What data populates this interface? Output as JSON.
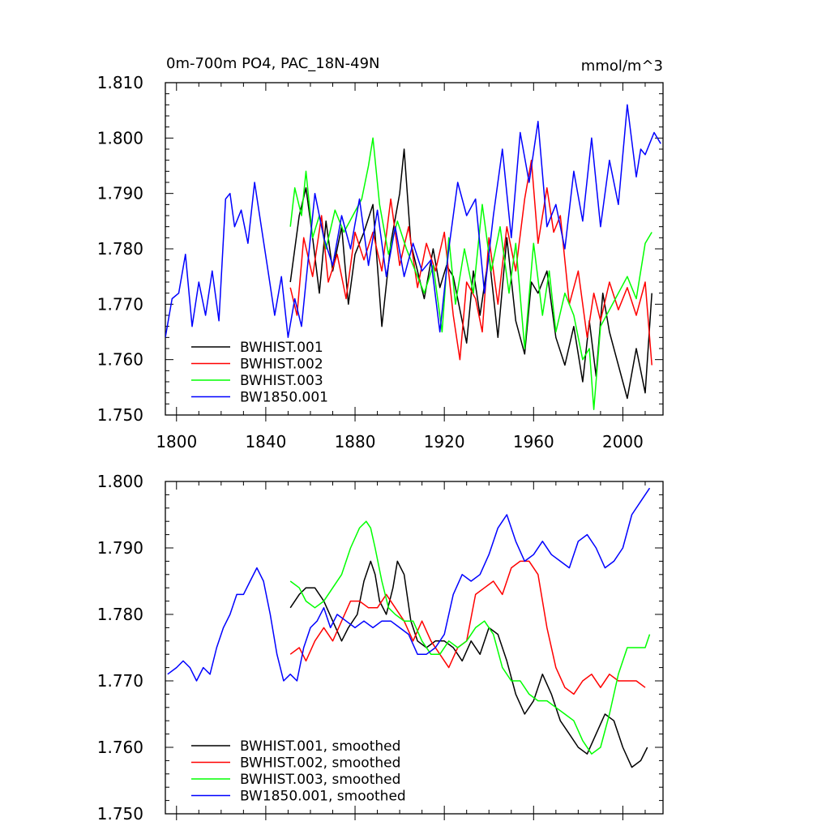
{
  "chart_data": [
    {
      "type": "line",
      "title_left": "0m-700m PO4, PAC_18N-49N",
      "title_right": "mmol/m^3",
      "xlim": [
        1795,
        2018
      ],
      "ylim": [
        1.75,
        1.81
      ],
      "x_ticks": [
        1800,
        1840,
        1880,
        1920,
        1960,
        2000
      ],
      "y_ticks": [
        1.75,
        1.76,
        1.77,
        1.78,
        1.79,
        1.8,
        1.81
      ],
      "y_tick_labels": [
        "1.750",
        "1.760",
        "1.770",
        "1.780",
        "1.790",
        "1.800",
        "1.810"
      ],
      "legend_position": "bottom-left",
      "series": [
        {
          "name": "BWHIST.001",
          "color": "#000000",
          "x": [
            1851,
            1855,
            1858,
            1861,
            1864,
            1867,
            1870,
            1874,
            1877,
            1880,
            1884,
            1888,
            1892,
            1896,
            1900,
            1902,
            1905,
            1908,
            1911,
            1915,
            1918,
            1921,
            1924,
            1927,
            1930,
            1933,
            1936,
            1940,
            1944,
            1948,
            1952,
            1956,
            1959,
            1962,
            1966,
            1970,
            1974,
            1978,
            1982,
            1985,
            1988,
            1991,
            1994,
            1998,
            2002,
            2006,
            2010,
            2013
          ],
          "values": [
            1.774,
            1.786,
            1.791,
            1.782,
            1.772,
            1.785,
            1.776,
            1.784,
            1.77,
            1.779,
            1.783,
            1.788,
            1.766,
            1.781,
            1.79,
            1.798,
            1.781,
            1.776,
            1.771,
            1.78,
            1.773,
            1.777,
            1.775,
            1.769,
            1.763,
            1.776,
            1.768,
            1.779,
            1.764,
            1.782,
            1.767,
            1.761,
            1.774,
            1.772,
            1.776,
            1.764,
            1.759,
            1.766,
            1.756,
            1.767,
            1.757,
            1.772,
            1.765,
            1.759,
            1.753,
            1.762,
            1.754,
            1.772
          ]
        },
        {
          "name": "BWHIST.002",
          "color": "#ff0000",
          "x": [
            1851,
            1854,
            1857,
            1861,
            1865,
            1868,
            1872,
            1876,
            1880,
            1884,
            1888,
            1892,
            1896,
            1900,
            1904,
            1908,
            1912,
            1916,
            1920,
            1924,
            1927,
            1930,
            1934,
            1937,
            1940,
            1944,
            1948,
            1952,
            1956,
            1959,
            1962,
            1966,
            1969,
            1972,
            1976,
            1980,
            1984,
            1987,
            1990,
            1994,
            1998,
            2002,
            2006,
            2010,
            2013
          ],
          "values": [
            1.773,
            1.768,
            1.782,
            1.775,
            1.786,
            1.774,
            1.779,
            1.771,
            1.783,
            1.778,
            1.783,
            1.776,
            1.789,
            1.777,
            1.784,
            1.773,
            1.781,
            1.776,
            1.783,
            1.768,
            1.76,
            1.774,
            1.771,
            1.765,
            1.782,
            1.77,
            1.784,
            1.776,
            1.789,
            1.796,
            1.781,
            1.791,
            1.783,
            1.786,
            1.77,
            1.776,
            1.764,
            1.772,
            1.767,
            1.774,
            1.769,
            1.773,
            1.768,
            1.774,
            1.759
          ]
        },
        {
          "name": "BWHIST.003",
          "color": "#00ff00",
          "x": [
            1851,
            1853,
            1856,
            1858,
            1861,
            1864,
            1867,
            1871,
            1875,
            1879,
            1883,
            1886,
            1888,
            1891,
            1895,
            1899,
            1903,
            1907,
            1911,
            1915,
            1919,
            1922,
            1925,
            1929,
            1933,
            1937,
            1941,
            1945,
            1949,
            1952,
            1956,
            1960,
            1964,
            1967,
            1970,
            1974,
            1978,
            1982,
            1985,
            1987,
            1990,
            1994,
            1998,
            2002,
            2006,
            2010,
            2013
          ],
          "values": [
            1.784,
            1.791,
            1.786,
            1.794,
            1.782,
            1.786,
            1.78,
            1.787,
            1.783,
            1.786,
            1.789,
            1.795,
            1.8,
            1.788,
            1.779,
            1.785,
            1.78,
            1.776,
            1.772,
            1.777,
            1.765,
            1.782,
            1.77,
            1.78,
            1.772,
            1.788,
            1.776,
            1.784,
            1.772,
            1.781,
            1.762,
            1.781,
            1.768,
            1.776,
            1.765,
            1.772,
            1.768,
            1.76,
            1.762,
            1.751,
            1.766,
            1.769,
            1.772,
            1.775,
            1.771,
            1.781,
            1.783
          ]
        },
        {
          "name": "BW1850.001",
          "color": "#0000ff",
          "x": [
            1795,
            1798,
            1801,
            1804,
            1807,
            1810,
            1813,
            1816,
            1819,
            1822,
            1824,
            1826,
            1829,
            1832,
            1835,
            1838,
            1841,
            1844,
            1847,
            1850,
            1853,
            1856,
            1859,
            1862,
            1866,
            1870,
            1874,
            1878,
            1882,
            1886,
            1890,
            1894,
            1898,
            1902,
            1906,
            1910,
            1914,
            1918,
            1922,
            1926,
            1930,
            1934,
            1938,
            1942,
            1946,
            1950,
            1954,
            1958,
            1962,
            1966,
            1970,
            1974,
            1978,
            1982,
            1986,
            1990,
            1994,
            1998,
            2002,
            2006,
            2008,
            2010,
            2014,
            2017
          ],
          "values": [
            1.764,
            1.771,
            1.772,
            1.779,
            1.766,
            1.774,
            1.768,
            1.776,
            1.767,
            1.789,
            1.79,
            1.784,
            1.787,
            1.781,
            1.792,
            1.784,
            1.776,
            1.768,
            1.775,
            1.764,
            1.771,
            1.766,
            1.778,
            1.79,
            1.782,
            1.777,
            1.786,
            1.78,
            1.789,
            1.777,
            1.787,
            1.775,
            1.784,
            1.775,
            1.781,
            1.776,
            1.778,
            1.765,
            1.78,
            1.792,
            1.786,
            1.789,
            1.772,
            1.786,
            1.798,
            1.782,
            1.801,
            1.792,
            1.803,
            1.784,
            1.788,
            1.78,
            1.794,
            1.785,
            1.8,
            1.784,
            1.796,
            1.788,
            1.806,
            1.793,
            1.798,
            1.797,
            1.801,
            1.799
          ]
        }
      ]
    },
    {
      "type": "line",
      "xlim": [
        1795,
        2018
      ],
      "ylim": [
        1.75,
        1.8
      ],
      "x_ticks": [
        1800,
        1840,
        1880,
        1920,
        1960,
        2000
      ],
      "y_ticks": [
        1.75,
        1.76,
        1.77,
        1.78,
        1.79,
        1.8
      ],
      "y_tick_labels": [
        "1.750",
        "1.760",
        "1.770",
        "1.780",
        "1.790",
        "1.800"
      ],
      "legend_position": "bottom-left",
      "series": [
        {
          "name": "BWHIST.001, smoothed",
          "color": "#000000",
          "x": [
            1851,
            1855,
            1858,
            1862,
            1866,
            1870,
            1874,
            1877,
            1881,
            1884,
            1887,
            1889,
            1891,
            1894,
            1897,
            1899,
            1902,
            1905,
            1908,
            1912,
            1916,
            1920,
            1924,
            1928,
            1932,
            1936,
            1940,
            1944,
            1948,
            1952,
            1956,
            1960,
            1964,
            1968,
            1972,
            1976,
            1980,
            1984,
            1988,
            1992,
            1996,
            2000,
            2004,
            2008,
            2011
          ],
          "values": [
            1.781,
            1.783,
            1.784,
            1.784,
            1.782,
            1.779,
            1.776,
            1.778,
            1.78,
            1.785,
            1.788,
            1.786,
            1.782,
            1.78,
            1.784,
            1.788,
            1.786,
            1.779,
            1.776,
            1.775,
            1.776,
            1.776,
            1.775,
            1.773,
            1.776,
            1.774,
            1.778,
            1.777,
            1.773,
            1.768,
            1.765,
            1.767,
            1.771,
            1.768,
            1.764,
            1.762,
            1.76,
            1.759,
            1.762,
            1.765,
            1.764,
            1.76,
            1.757,
            1.758,
            1.76
          ]
        },
        {
          "name": "BWHIST.002, smoothed",
          "color": "#ff0000",
          "x": [
            1851,
            1855,
            1858,
            1862,
            1866,
            1870,
            1874,
            1878,
            1882,
            1886,
            1890,
            1894,
            1898,
            1902,
            1906,
            1910,
            1914,
            1918,
            1922,
            1926,
            1930,
            1934,
            1938,
            1942,
            1946,
            1950,
            1954,
            1958,
            1962,
            1966,
            1970,
            1974,
            1978,
            1982,
            1986,
            1990,
            1994,
            1998,
            2002,
            2006,
            2010
          ],
          "values": [
            1.774,
            1.775,
            1.773,
            1.776,
            1.778,
            1.776,
            1.779,
            1.782,
            1.782,
            1.781,
            1.781,
            1.783,
            1.781,
            1.779,
            1.776,
            1.779,
            1.776,
            1.774,
            1.772,
            1.775,
            1.776,
            1.783,
            1.784,
            1.785,
            1.783,
            1.787,
            1.788,
            1.788,
            1.786,
            1.778,
            1.772,
            1.769,
            1.768,
            1.77,
            1.771,
            1.769,
            1.771,
            1.77,
            1.77,
            1.77,
            1.769
          ]
        },
        {
          "name": "BWHIST.003, smoothed",
          "color": "#00ff00",
          "x": [
            1851,
            1855,
            1858,
            1862,
            1866,
            1870,
            1874,
            1878,
            1882,
            1885,
            1887,
            1889,
            1892,
            1895,
            1898,
            1902,
            1906,
            1910,
            1914,
            1918,
            1922,
            1926,
            1930,
            1934,
            1938,
            1942,
            1946,
            1950,
            1954,
            1958,
            1962,
            1966,
            1970,
            1974,
            1978,
            1982,
            1986,
            1990,
            1994,
            1998,
            2002,
            2006,
            2010,
            2012
          ],
          "values": [
            1.785,
            1.784,
            1.782,
            1.781,
            1.782,
            1.784,
            1.786,
            1.79,
            1.793,
            1.794,
            1.793,
            1.79,
            1.785,
            1.781,
            1.78,
            1.779,
            1.779,
            1.776,
            1.774,
            1.774,
            1.776,
            1.775,
            1.776,
            1.778,
            1.779,
            1.777,
            1.772,
            1.77,
            1.77,
            1.768,
            1.767,
            1.767,
            1.766,
            1.765,
            1.764,
            1.761,
            1.759,
            1.76,
            1.765,
            1.771,
            1.775,
            1.775,
            1.775,
            1.777
          ]
        },
        {
          "name": "BW1850.001, smoothed",
          "color": "#0000ff",
          "x": [
            1796,
            1800,
            1803,
            1806,
            1809,
            1812,
            1815,
            1818,
            1821,
            1824,
            1827,
            1830,
            1833,
            1836,
            1839,
            1842,
            1845,
            1848,
            1851,
            1854,
            1857,
            1860,
            1863,
            1866,
            1869,
            1872,
            1876,
            1880,
            1884,
            1888,
            1892,
            1896,
            1900,
            1904,
            1908,
            1912,
            1916,
            1920,
            1924,
            1928,
            1932,
            1936,
            1940,
            1944,
            1948,
            1952,
            1956,
            1960,
            1964,
            1968,
            1972,
            1976,
            1980,
            1984,
            1988,
            1992,
            1996,
            2000,
            2004,
            2008,
            2012
          ],
          "values": [
            1.771,
            1.772,
            1.773,
            1.772,
            1.77,
            1.772,
            1.771,
            1.775,
            1.778,
            1.78,
            1.783,
            1.783,
            1.785,
            1.787,
            1.785,
            1.78,
            1.774,
            1.77,
            1.771,
            1.77,
            1.775,
            1.778,
            1.779,
            1.781,
            1.778,
            1.78,
            1.779,
            1.778,
            1.779,
            1.778,
            1.779,
            1.779,
            1.778,
            1.777,
            1.774,
            1.774,
            1.775,
            1.777,
            1.783,
            1.786,
            1.785,
            1.786,
            1.789,
            1.793,
            1.795,
            1.791,
            1.788,
            1.789,
            1.791,
            1.789,
            1.788,
            1.787,
            1.791,
            1.792,
            1.79,
            1.787,
            1.788,
            1.79,
            1.795,
            1.797,
            1.799
          ]
        }
      ]
    }
  ]
}
